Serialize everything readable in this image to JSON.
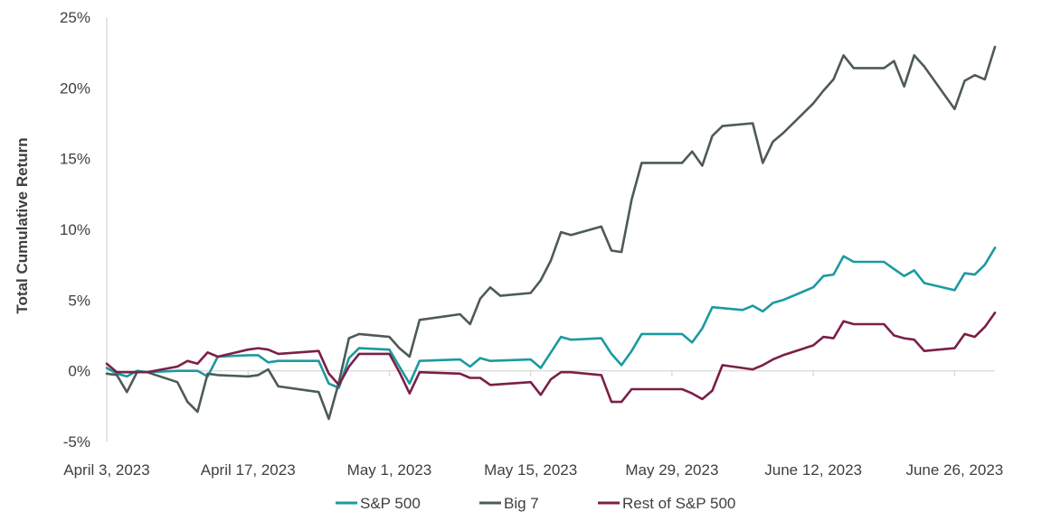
{
  "chart_data": {
    "type": "line",
    "ylabel": "Total Cumulative Return",
    "xlabel": "",
    "ylim": [
      -5,
      25
    ],
    "yticks": [
      25,
      20,
      15,
      10,
      5,
      0,
      -5
    ],
    "ytick_labels": [
      "25%",
      "20%",
      "15%",
      "10%",
      "5%",
      "0%",
      "-5%"
    ],
    "xticks": [
      0,
      14,
      28,
      42,
      56,
      70,
      84
    ],
    "xtick_labels": [
      "April 3, 2023",
      "April 17, 2023",
      "May 1, 2023",
      "May 15, 2023",
      "May 29, 2023",
      "June 12, 2023",
      "June 26, 2023"
    ],
    "x_unit": "days since April 3, 2023",
    "legend_position": "bottom",
    "series": [
      {
        "name": "S&P 500",
        "color": "#1b9aa0",
        "points": [
          [
            0,
            0.2
          ],
          [
            1,
            -0.2
          ],
          [
            2,
            -0.4
          ],
          [
            3,
            0.0
          ],
          [
            4,
            -0.1
          ],
          [
            7,
            0.0
          ],
          [
            8,
            0.0
          ],
          [
            9,
            0.0
          ],
          [
            10,
            -0.4
          ],
          [
            11,
            1.0
          ],
          [
            14,
            1.1
          ],
          [
            15,
            1.1
          ],
          [
            16,
            0.6
          ],
          [
            17,
            0.7
          ],
          [
            21,
            0.7
          ],
          [
            22,
            -0.9
          ],
          [
            23,
            -1.2
          ],
          [
            24,
            0.9
          ],
          [
            25,
            1.6
          ],
          [
            28,
            1.5
          ],
          [
            29,
            0.3
          ],
          [
            30,
            -0.9
          ],
          [
            31,
            0.7
          ],
          [
            35,
            0.8
          ],
          [
            36,
            0.3
          ],
          [
            37,
            0.9
          ],
          [
            38,
            0.7
          ],
          [
            42,
            0.8
          ],
          [
            43,
            0.2
          ],
          [
            44,
            1.3
          ],
          [
            45,
            2.4
          ],
          [
            46,
            2.2
          ],
          [
            49,
            2.3
          ],
          [
            50,
            1.2
          ],
          [
            51,
            0.4
          ],
          [
            52,
            1.4
          ],
          [
            53,
            2.6
          ],
          [
            57,
            2.6
          ],
          [
            58,
            2.0
          ],
          [
            59,
            3.0
          ],
          [
            60,
            4.5
          ],
          [
            63,
            4.3
          ],
          [
            64,
            4.6
          ],
          [
            65,
            4.2
          ],
          [
            66,
            4.8
          ],
          [
            67,
            5.0
          ],
          [
            70,
            5.9
          ],
          [
            71,
            6.7
          ],
          [
            72,
            6.8
          ],
          [
            73,
            8.1
          ],
          [
            74,
            7.7
          ],
          [
            77,
            7.7
          ],
          [
            78,
            7.2
          ],
          [
            79,
            6.7
          ],
          [
            80,
            7.1
          ],
          [
            81,
            6.2
          ],
          [
            84,
            5.7
          ],
          [
            85,
            6.9
          ],
          [
            86,
            6.8
          ],
          [
            87,
            7.5
          ],
          [
            88,
            8.7
          ]
        ]
      },
      {
        "name": "Big 7",
        "color": "#4d5a58",
        "points": [
          [
            0,
            -0.2
          ],
          [
            1,
            -0.3
          ],
          [
            2,
            -1.5
          ],
          [
            3,
            -0.1
          ],
          [
            4,
            -0.1
          ],
          [
            7,
            -0.8
          ],
          [
            8,
            -2.2
          ],
          [
            9,
            -2.9
          ],
          [
            10,
            -0.2
          ],
          [
            11,
            -0.3
          ],
          [
            14,
            -0.4
          ],
          [
            15,
            -0.3
          ],
          [
            16,
            0.1
          ],
          [
            17,
            -1.1
          ],
          [
            21,
            -1.5
          ],
          [
            22,
            -3.4
          ],
          [
            23,
            -0.8
          ],
          [
            24,
            2.3
          ],
          [
            25,
            2.6
          ],
          [
            28,
            2.4
          ],
          [
            29,
            1.6
          ],
          [
            30,
            1.0
          ],
          [
            31,
            3.6
          ],
          [
            35,
            4.0
          ],
          [
            36,
            3.3
          ],
          [
            37,
            5.1
          ],
          [
            38,
            5.9
          ],
          [
            39,
            5.3
          ],
          [
            42,
            5.5
          ],
          [
            43,
            6.4
          ],
          [
            44,
            7.8
          ],
          [
            45,
            9.8
          ],
          [
            46,
            9.6
          ],
          [
            49,
            10.2
          ],
          [
            50,
            8.5
          ],
          [
            51,
            8.4
          ],
          [
            52,
            12.1
          ],
          [
            53,
            14.7
          ],
          [
            57,
            14.7
          ],
          [
            58,
            15.5
          ],
          [
            59,
            14.5
          ],
          [
            60,
            16.6
          ],
          [
            61,
            17.3
          ],
          [
            64,
            17.5
          ],
          [
            65,
            14.7
          ],
          [
            66,
            16.2
          ],
          [
            67,
            16.8
          ],
          [
            70,
            18.9
          ],
          [
            71,
            19.8
          ],
          [
            72,
            20.6
          ],
          [
            73,
            22.3
          ],
          [
            74,
            21.4
          ],
          [
            77,
            21.4
          ],
          [
            78,
            21.9
          ],
          [
            79,
            20.1
          ],
          [
            80,
            22.3
          ],
          [
            81,
            21.5
          ],
          [
            84,
            18.5
          ],
          [
            85,
            20.5
          ],
          [
            86,
            20.9
          ],
          [
            87,
            20.6
          ],
          [
            88,
            22.9
          ]
        ]
      },
      {
        "name": "Rest of S&P 500",
        "color": "#7b1f47",
        "points": [
          [
            0,
            0.5
          ],
          [
            1,
            -0.1
          ],
          [
            2,
            -0.1
          ],
          [
            3,
            -0.1
          ],
          [
            4,
            -0.1
          ],
          [
            7,
            0.3
          ],
          [
            8,
            0.7
          ],
          [
            9,
            0.5
          ],
          [
            10,
            1.3
          ],
          [
            11,
            1.0
          ],
          [
            14,
            1.5
          ],
          [
            15,
            1.6
          ],
          [
            16,
            1.5
          ],
          [
            17,
            1.2
          ],
          [
            21,
            1.4
          ],
          [
            22,
            -0.2
          ],
          [
            23,
            -1.0
          ],
          [
            24,
            0.3
          ],
          [
            25,
            1.2
          ],
          [
            28,
            1.2
          ],
          [
            29,
            -0.1
          ],
          [
            30,
            -1.6
          ],
          [
            31,
            -0.1
          ],
          [
            35,
            -0.2
          ],
          [
            36,
            -0.5
          ],
          [
            37,
            -0.5
          ],
          [
            38,
            -1.0
          ],
          [
            42,
            -0.8
          ],
          [
            43,
            -1.7
          ],
          [
            44,
            -0.6
          ],
          [
            45,
            -0.1
          ],
          [
            46,
            -0.1
          ],
          [
            49,
            -0.3
          ],
          [
            50,
            -2.2
          ],
          [
            51,
            -2.2
          ],
          [
            52,
            -1.3
          ],
          [
            53,
            -1.3
          ],
          [
            57,
            -1.3
          ],
          [
            58,
            -1.6
          ],
          [
            59,
            -2.0
          ],
          [
            60,
            -1.4
          ],
          [
            61,
            0.4
          ],
          [
            64,
            0.1
          ],
          [
            65,
            0.4
          ],
          [
            66,
            0.8
          ],
          [
            67,
            1.1
          ],
          [
            70,
            1.8
          ],
          [
            71,
            2.4
          ],
          [
            72,
            2.3
          ],
          [
            73,
            3.5
          ],
          [
            74,
            3.3
          ],
          [
            77,
            3.3
          ],
          [
            78,
            2.5
          ],
          [
            79,
            2.3
          ],
          [
            80,
            2.2
          ],
          [
            81,
            1.4
          ],
          [
            84,
            1.6
          ],
          [
            85,
            2.6
          ],
          [
            86,
            2.4
          ],
          [
            87,
            3.1
          ],
          [
            88,
            4.1
          ]
        ]
      }
    ]
  }
}
